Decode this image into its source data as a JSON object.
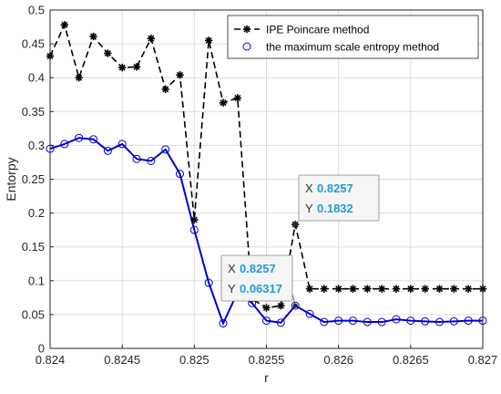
{
  "chart_data": {
    "type": "line",
    "xlabel": "r",
    "ylabel": "Entorpy",
    "xlim": [
      0.824,
      0.827
    ],
    "ylim": [
      0,
      0.5
    ],
    "xticks": [
      "0.824",
      "0.8245",
      "0.825",
      "0.8255",
      "0.826",
      "0.8265",
      "0.827"
    ],
    "yticks": [
      "0",
      "0.05",
      "0.1",
      "0.15",
      "0.2",
      "0.25",
      "0.3",
      "0.35",
      "0.4",
      "0.45",
      "0.5"
    ],
    "grid": true,
    "legend_position": "top-right",
    "x": [
      0.824,
      0.8241,
      0.8242,
      0.8243,
      0.8244,
      0.8245,
      0.8246,
      0.8247,
      0.8248,
      0.8249,
      0.825,
      0.8251,
      0.8252,
      0.8253,
      0.8254,
      0.8255,
      0.8256,
      0.8257,
      0.8258,
      0.8259,
      0.826,
      0.8261,
      0.8262,
      0.8263,
      0.8264,
      0.8265,
      0.8266,
      0.8267,
      0.8268,
      0.8269,
      0.827
    ],
    "series": [
      {
        "name": "IPE Poincare method",
        "color": "#000000",
        "line_style": "dashed",
        "marker": "asterisk",
        "values": [
          0.432,
          0.478,
          0.4,
          0.461,
          0.436,
          0.415,
          0.416,
          0.458,
          0.383,
          0.404,
          0.19,
          0.455,
          0.363,
          0.37,
          0.073,
          0.06,
          0.063,
          0.1832,
          0.088,
          0.088,
          0.088,
          0.088,
          0.088,
          0.088,
          0.088,
          0.088,
          0.088,
          0.088,
          0.088,
          0.088,
          0.088
        ]
      },
      {
        "name": "the maximum scale entropy method",
        "color": "#0000cc",
        "line_style": "solid",
        "marker": "circle",
        "values": [
          0.295,
          0.302,
          0.311,
          0.309,
          0.292,
          0.302,
          0.28,
          0.277,
          0.294,
          0.258,
          0.175,
          0.097,
          0.037,
          0.083,
          0.067,
          0.041,
          0.038,
          0.06317,
          0.051,
          0.039,
          0.041,
          0.041,
          0.039,
          0.039,
          0.043,
          0.041,
          0.04,
          0.039,
          0.04,
          0.041,
          0.041
        ]
      }
    ],
    "datatips": [
      {
        "x_label": "X",
        "x_value": "0.8257",
        "y_label": "Y",
        "y_value": "0.1832",
        "series": 0,
        "index": 17
      },
      {
        "x_label": "X",
        "x_value": "0.8257",
        "y_label": "Y",
        "y_value": "0.06317",
        "series": 1,
        "index": 17
      }
    ]
  }
}
